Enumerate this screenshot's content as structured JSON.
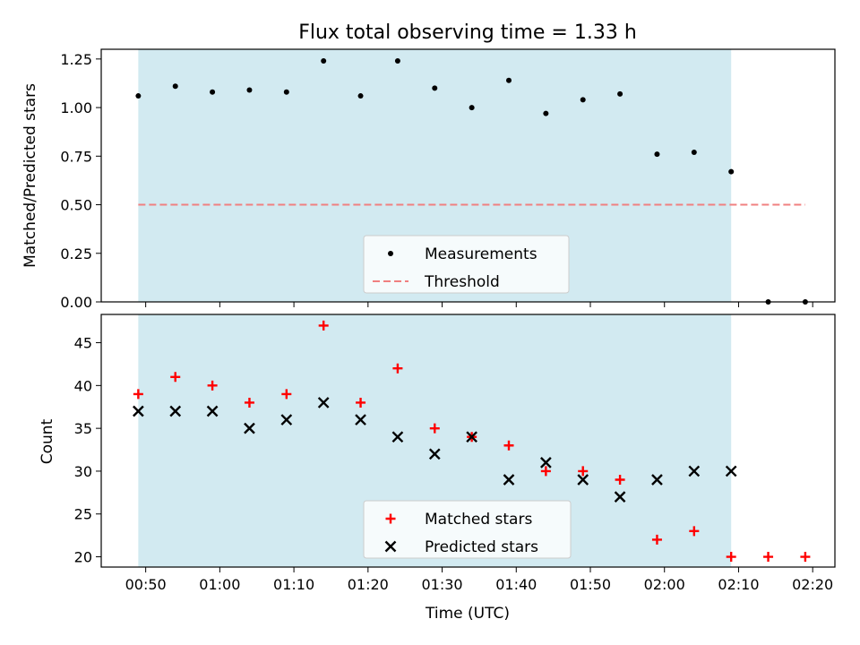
{
  "figure": {
    "title": "Flux total observing time = 1.33 h",
    "xlabel": "Time (UTC)"
  },
  "colors": {
    "shade": "#add8e6",
    "measurement": "#000000",
    "threshold": "#f08080",
    "matched": "#ff0000",
    "predicted": "#000000"
  },
  "chart_data": [
    {
      "type": "scatter",
      "panel": "top",
      "ylabel": "Matched/Predicted stars",
      "x": [
        "00:49",
        "00:54",
        "00:59",
        "01:04",
        "01:09",
        "01:14",
        "01:19",
        "01:24",
        "01:29",
        "01:34",
        "01:39",
        "01:44",
        "01:49",
        "01:54",
        "01:59",
        "02:04",
        "02:09",
        "02:14",
        "02:19"
      ],
      "series": [
        {
          "name": "Measurements",
          "marker": "dot",
          "values": [
            1.06,
            1.11,
            1.08,
            1.09,
            1.08,
            1.24,
            1.06,
            1.24,
            1.1,
            1.0,
            1.14,
            0.97,
            1.04,
            1.07,
            0.76,
            0.77,
            0.67,
            0.0,
            0.0
          ]
        },
        {
          "name": "Threshold",
          "marker": "dashed-line",
          "values": [
            0.5,
            0.5,
            0.5,
            0.5,
            0.5,
            0.5,
            0.5,
            0.5,
            0.5,
            0.5,
            0.5,
            0.5,
            0.5,
            0.5,
            0.5,
            0.5,
            0.5,
            0.5,
            0.5
          ]
        }
      ],
      "shaded_span": [
        "00:49",
        "02:09"
      ],
      "xlim": [
        "00:44",
        "02:23"
      ],
      "ylim": [
        0,
        1.3
      ],
      "yticks": [
        0.0,
        0.25,
        0.5,
        0.75,
        1.0,
        1.25
      ],
      "ytick_labels": [
        "0.00",
        "0.25",
        "0.50",
        "0.75",
        "1.00",
        "1.25"
      ],
      "legend": "lower-center"
    },
    {
      "type": "scatter",
      "panel": "bottom",
      "ylabel": "Count",
      "xlabel": "Time (UTC)",
      "x": [
        "00:49",
        "00:54",
        "00:59",
        "01:04",
        "01:09",
        "01:14",
        "01:19",
        "01:24",
        "01:29",
        "01:34",
        "01:39",
        "01:44",
        "01:49",
        "01:54",
        "01:59",
        "02:04",
        "02:09",
        "02:14",
        "02:19"
      ],
      "series": [
        {
          "name": "Matched stars",
          "marker": "plus",
          "values": [
            39,
            41,
            40,
            38,
            39,
            47,
            38,
            42,
            35,
            34,
            33,
            30,
            30,
            29,
            22,
            23,
            20,
            20,
            20
          ]
        },
        {
          "name": "Predicted stars",
          "marker": "x",
          "values": [
            37,
            37,
            37,
            35,
            36,
            38,
            36,
            34,
            32,
            34,
            29,
            31,
            29,
            27,
            29,
            30,
            30,
            null,
            null
          ]
        }
      ],
      "shaded_span": [
        "00:49",
        "02:09"
      ],
      "xlim": [
        "00:44",
        "02:23"
      ],
      "ylim": [
        18.8,
        48.3
      ],
      "yticks": [
        20,
        25,
        30,
        35,
        40,
        45
      ],
      "ytick_labels": [
        "20",
        "25",
        "30",
        "35",
        "40",
        "45"
      ],
      "xticks": [
        "00:50",
        "01:00",
        "01:10",
        "01:20",
        "01:30",
        "01:40",
        "01:50",
        "02:00",
        "02:10",
        "02:20"
      ],
      "legend": "lower-center"
    }
  ]
}
